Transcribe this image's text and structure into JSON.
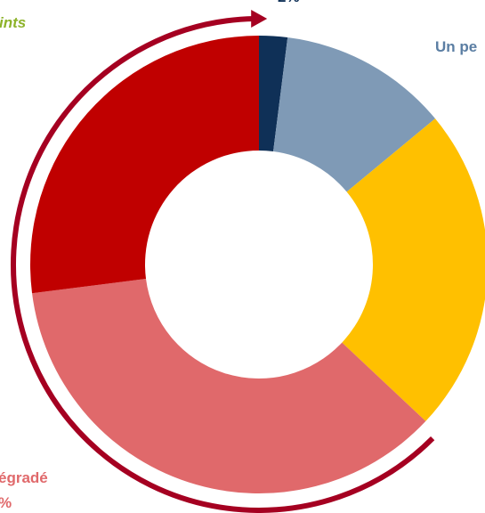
{
  "chart_data": {
    "type": "donut",
    "values": [
      2,
      12,
      23,
      36,
      27
    ],
    "colors": [
      "#0f3057",
      "#7f9ab6",
      "#ffc000",
      "#e0696b",
      "#c00000"
    ],
    "annotations": [
      "ints",
      "2%",
      "Un pe",
      "égradé",
      "%"
    ],
    "arrow_color": "#a50021"
  }
}
